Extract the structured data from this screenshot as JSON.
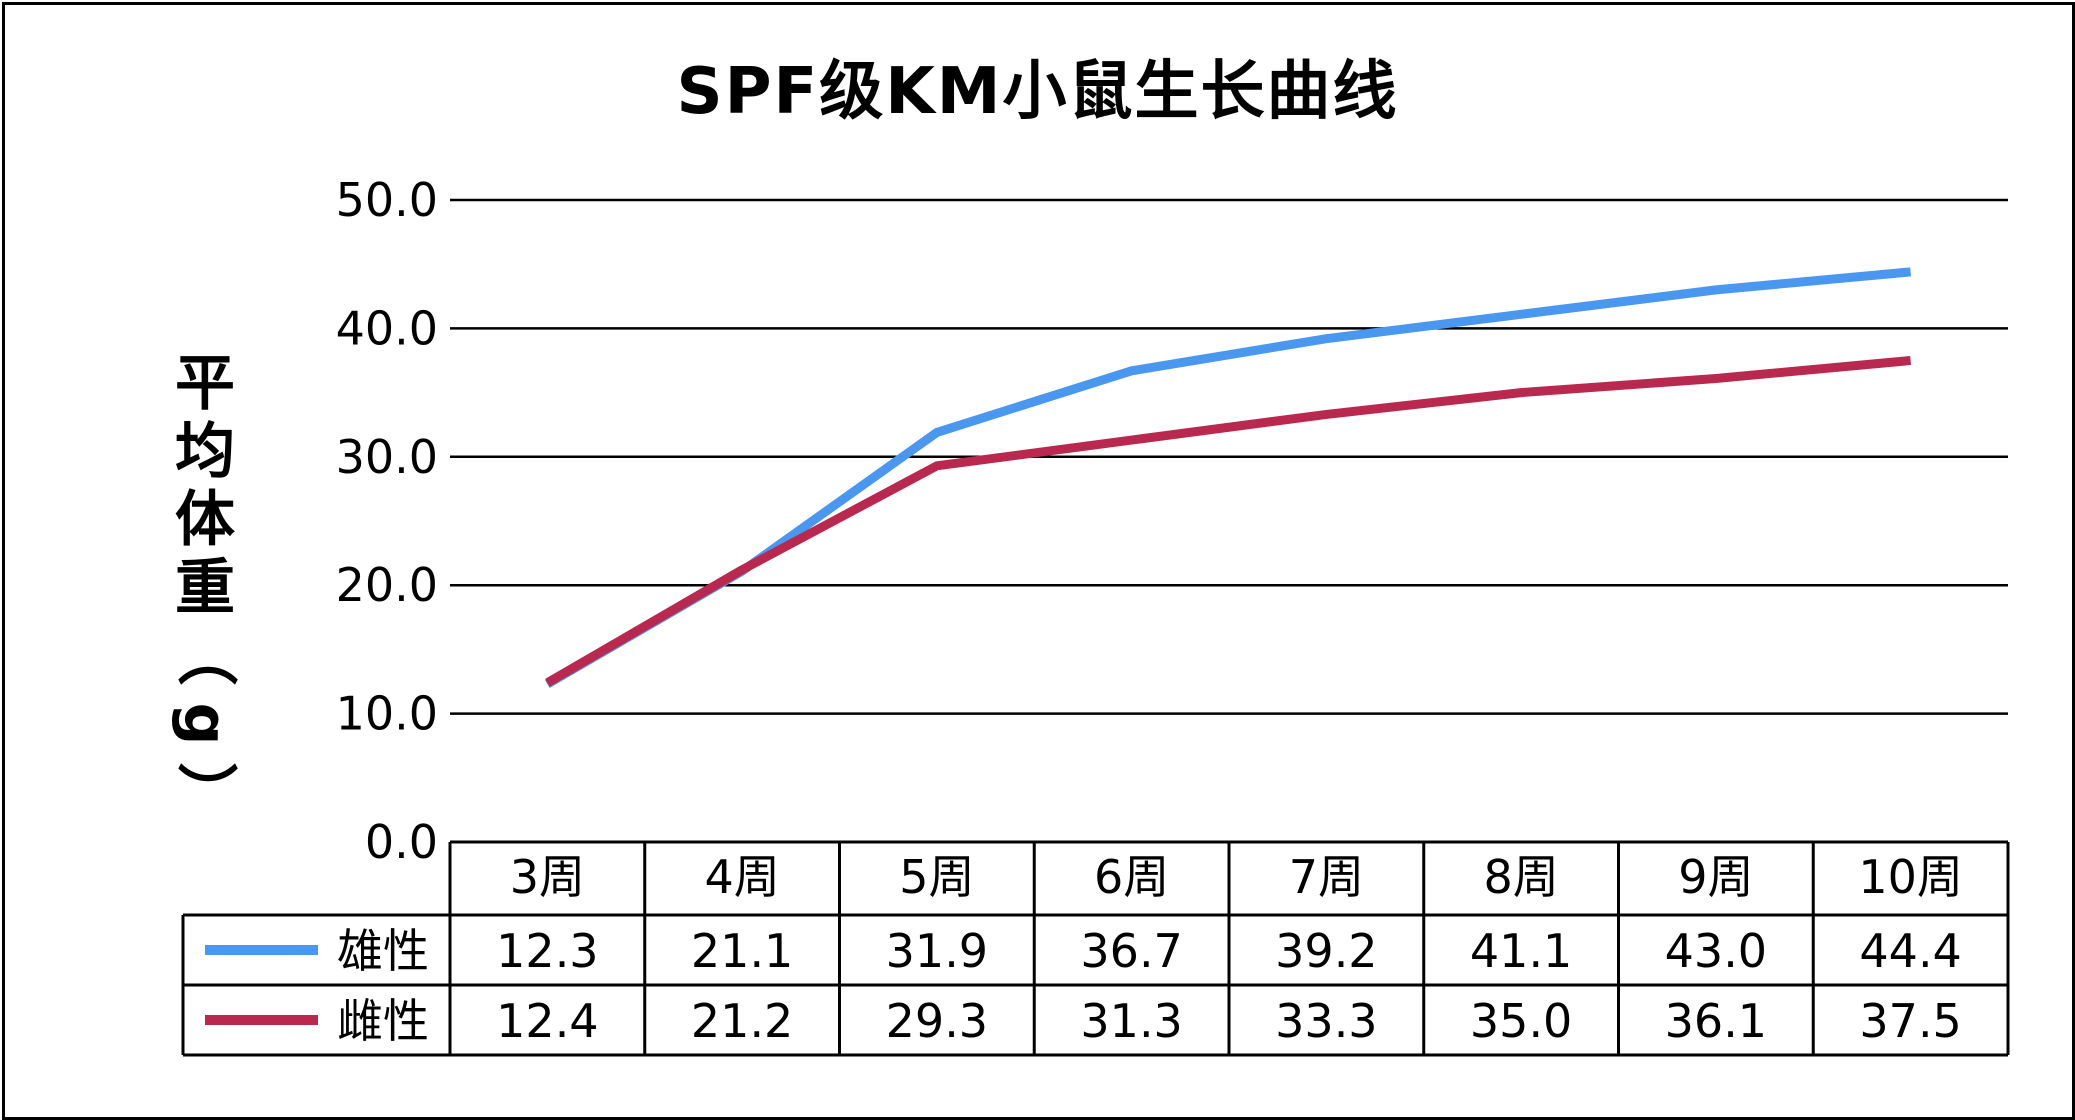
{
  "chart_data": {
    "type": "line",
    "title": "SPF级KM小鼠生长曲线",
    "ylabel": "平均体重（g）",
    "xlabel": "",
    "categories": [
      "3周",
      "4周",
      "5周",
      "6周",
      "7周",
      "8周",
      "9周",
      "10周"
    ],
    "ylim": [
      0,
      50
    ],
    "yticks": [
      "0.0",
      "10.0",
      "20.0",
      "30.0",
      "40.0",
      "50.0"
    ],
    "grid": true,
    "legend": "data-table",
    "series": [
      {
        "name": "雄性",
        "color": "#4a97f0",
        "values": [
          12.3,
          21.1,
          31.9,
          36.7,
          39.2,
          41.1,
          43.0,
          44.4
        ],
        "labels": [
          "12.3",
          "21.1",
          "31.9",
          "36.7",
          "39.2",
          "41.1",
          "43.0",
          "44.4"
        ]
      },
      {
        "name": "雌性",
        "color": "#b8284f",
        "values": [
          12.4,
          21.2,
          29.3,
          31.3,
          33.3,
          35.0,
          36.1,
          37.5
        ],
        "labels": [
          "12.4",
          "21.2",
          "29.3",
          "31.3",
          "33.3",
          "35.0",
          "36.1",
          "37.5"
        ]
      }
    ]
  }
}
